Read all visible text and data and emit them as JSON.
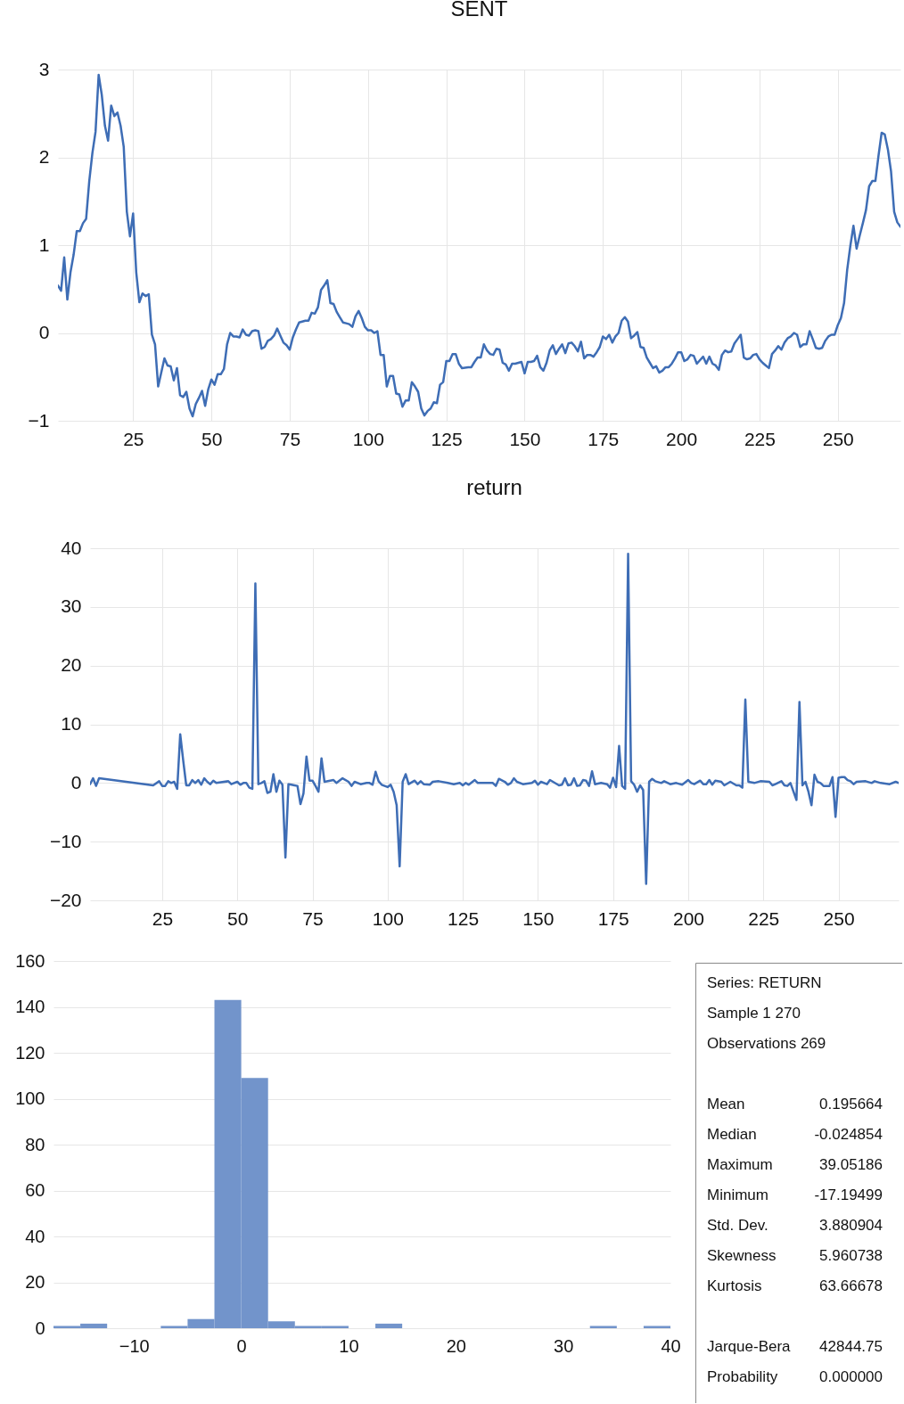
{
  "chart_data": [
    {
      "type": "line",
      "title": "SENT",
      "color": "#3e6db5",
      "grid": true,
      "xlim": [
        1,
        270
      ],
      "xticks": [
        25,
        50,
        75,
        100,
        125,
        150,
        175,
        200,
        225,
        250
      ],
      "ylim": [
        -1,
        3
      ],
      "yticks": [
        -1,
        0,
        1,
        2,
        3
      ],
      "x": [
        1,
        2,
        3,
        4,
        5,
        6,
        7,
        8,
        9,
        10,
        11,
        12,
        13,
        14,
        15,
        16,
        17,
        18,
        19,
        20,
        21,
        22,
        23,
        24,
        25,
        26,
        27,
        28,
        29,
        30,
        31,
        32,
        33,
        34,
        35,
        36,
        37,
        38,
        39,
        40,
        41,
        42,
        43,
        44,
        45,
        46,
        47,
        48,
        49,
        50,
        51,
        52,
        53,
        54,
        55,
        56,
        57,
        58,
        59,
        60,
        61,
        62,
        63,
        64,
        65,
        66,
        67,
        68,
        69,
        70,
        71,
        72,
        73,
        74,
        75,
        76,
        77,
        78,
        79,
        80,
        81,
        82,
        83,
        84,
        85,
        86,
        87,
        88,
        89,
        90,
        91,
        92,
        93,
        94,
        95,
        96,
        97,
        98,
        99,
        100,
        101,
        102,
        103,
        104,
        105,
        106,
        107,
        108,
        109,
        110,
        111,
        112,
        113,
        114,
        115,
        116,
        117,
        118,
        119,
        120,
        121,
        122,
        123,
        124,
        125,
        126,
        127,
        128,
        129,
        130,
        132,
        133,
        134,
        135,
        136,
        137,
        138,
        139,
        140,
        141,
        142,
        143,
        144,
        145,
        146,
        147,
        148,
        149,
        150,
        151,
        152,
        153,
        154,
        155,
        156,
        157,
        158,
        159,
        160,
        161,
        162,
        163,
        164,
        165,
        166,
        167,
        168,
        169,
        170,
        171,
        172,
        173,
        174,
        175,
        176,
        177,
        178,
        179,
        180,
        181,
        182,
        183,
        184,
        185,
        186,
        187,
        188,
        189,
        190,
        191,
        192,
        193,
        194,
        195,
        196,
        197,
        198,
        199,
        200,
        201,
        202,
        203,
        204,
        205,
        206,
        207,
        208,
        209,
        210,
        211,
        212,
        213,
        214,
        215,
        216,
        217,
        218,
        219,
        220,
        221,
        222,
        223,
        224,
        225,
        226,
        227,
        228,
        229,
        230,
        231,
        232,
        233,
        234,
        235,
        236,
        237,
        238,
        239,
        240,
        241,
        242,
        243,
        244,
        245,
        246,
        247,
        248,
        249,
        250,
        251,
        252,
        253,
        254,
        255,
        256,
        257,
        258,
        259,
        260,
        261,
        262,
        263,
        264,
        265,
        266,
        267,
        268,
        269,
        270
      ],
      "values": [
        0.54,
        0.48,
        0.86,
        0.38,
        0.69,
        0.89,
        1.16,
        1.16,
        1.25,
        1.3,
        1.73,
        2.05,
        2.29,
        2.94,
        2.71,
        2.36,
        2.19,
        2.59,
        2.47,
        2.51,
        2.36,
        2.12,
        1.38,
        1.1,
        1.36,
        0.69,
        0.35,
        0.45,
        0.42,
        0.44,
        -0.02,
        -0.13,
        -0.61,
        -0.45,
        -0.29,
        -0.37,
        -0.38,
        -0.54,
        -0.4,
        -0.71,
        -0.73,
        -0.67,
        -0.86,
        -0.95,
        -0.81,
        -0.74,
        -0.66,
        -0.83,
        -0.64,
        -0.53,
        -0.59,
        -0.47,
        -0.47,
        -0.41,
        -0.13,
        0.0,
        -0.04,
        -0.04,
        -0.05,
        0.04,
        -0.02,
        -0.03,
        0.02,
        0.03,
        0.02,
        -0.18,
        -0.16,
        -0.09,
        -0.07,
        -0.03,
        0.05,
        -0.03,
        -0.11,
        -0.14,
        -0.19,
        -0.05,
        0.04,
        0.12,
        0.13,
        0.14,
        0.14,
        0.23,
        0.22,
        0.29,
        0.49,
        0.54,
        0.6,
        0.34,
        0.33,
        0.24,
        0.18,
        0.12,
        0.11,
        0.1,
        0.07,
        0.19,
        0.25,
        0.17,
        0.07,
        0.03,
        0.03,
        0.0,
        0.02,
        -0.25,
        -0.25,
        -0.61,
        -0.49,
        -0.49,
        -0.69,
        -0.7,
        -0.84,
        -0.77,
        -0.77,
        -0.56,
        -0.61,
        -0.67,
        -0.86,
        -0.94,
        -0.89,
        -0.86,
        -0.79,
        -0.8,
        -0.59,
        -0.56,
        -0.32,
        -0.32,
        -0.24,
        -0.24,
        -0.35,
        -0.4,
        -0.39,
        -0.39,
        -0.33,
        -0.28,
        -0.28,
        -0.13,
        -0.2,
        -0.24,
        -0.25,
        -0.18,
        -0.19,
        -0.34,
        -0.36,
        -0.43,
        -0.35,
        -0.35,
        -0.34,
        -0.33,
        -0.46,
        -0.33,
        -0.33,
        -0.32,
        -0.26,
        -0.39,
        -0.43,
        -0.34,
        -0.2,
        -0.14,
        -0.24,
        -0.18,
        -0.13,
        -0.23,
        -0.12,
        -0.11,
        -0.15,
        -0.21,
        -0.1,
        -0.29,
        -0.25,
        -0.25,
        -0.27,
        -0.22,
        -0.16,
        -0.04,
        -0.07,
        -0.02,
        -0.11,
        -0.04,
        0.0,
        0.14,
        0.18,
        0.13,
        -0.06,
        -0.03,
        0.01,
        -0.16,
        -0.17,
        -0.28,
        -0.34,
        -0.4,
        -0.38,
        -0.45,
        -0.43,
        -0.39,
        -0.39,
        -0.35,
        -0.29,
        -0.22,
        -0.22,
        -0.32,
        -0.3,
        -0.25,
        -0.26,
        -0.35,
        -0.31,
        -0.27,
        -0.35,
        -0.27,
        -0.35,
        -0.37,
        -0.42,
        -0.25,
        -0.2,
        -0.22,
        -0.21,
        -0.12,
        -0.07,
        -0.02,
        -0.28,
        -0.3,
        -0.29,
        -0.25,
        -0.24,
        -0.3,
        -0.34,
        -0.37,
        -0.4,
        -0.24,
        -0.2,
        -0.15,
        -0.19,
        -0.11,
        -0.06,
        -0.04,
        0.0,
        -0.02,
        -0.16,
        -0.13,
        -0.13,
        0.02,
        -0.07,
        -0.17,
        -0.18,
        -0.17,
        -0.09,
        -0.04,
        -0.02,
        -0.02,
        0.09,
        0.17,
        0.34,
        0.72,
        0.99,
        1.22,
        0.96,
        1.11,
        1.25,
        1.4,
        1.67,
        1.73,
        1.73,
        2.02,
        2.28,
        2.26,
        2.09,
        1.84,
        1.38,
        1.26,
        1.21
      ]
    },
    {
      "type": "line",
      "title": "return",
      "color": "#3e6db5",
      "grid": true,
      "xlim": [
        1,
        270
      ],
      "xticks": [
        25,
        50,
        75,
        100,
        125,
        150,
        175,
        200,
        225,
        250
      ],
      "ylim": [
        -20,
        40
      ],
      "yticks": [
        -20,
        -10,
        0,
        10,
        20,
        30,
        40
      ],
      "x": [
        1,
        2,
        3,
        4,
        22,
        24,
        25,
        26,
        27,
        28,
        29,
        30,
        31,
        32,
        33,
        34,
        35,
        36,
        37,
        38,
        39,
        40,
        41,
        42,
        43,
        47,
        48,
        50,
        51,
        52,
        53,
        54,
        55,
        56,
        57,
        58,
        59,
        60,
        61,
        62,
        63,
        64,
        65,
        66,
        67,
        68,
        69,
        70,
        71,
        72,
        73,
        74,
        75,
        76,
        77,
        78,
        79,
        82,
        83,
        85,
        87,
        88,
        89,
        91,
        93,
        94,
        95,
        96,
        97,
        98,
        100,
        101,
        102,
        103,
        104,
        105,
        106,
        107,
        109,
        110,
        111,
        112,
        114,
        115,
        117,
        120,
        122,
        124,
        125,
        126,
        127,
        129,
        130,
        133,
        135,
        136,
        137,
        139,
        140,
        141,
        142,
        143,
        145,
        148,
        149,
        150,
        151,
        153,
        154,
        157,
        158,
        159,
        160,
        161,
        162,
        163,
        164,
        165,
        166,
        167,
        168,
        169,
        171,
        173,
        174,
        175,
        176,
        177,
        178,
        179,
        180,
        181,
        182,
        183,
        184,
        185,
        186,
        187,
        188,
        189,
        191,
        192,
        194,
        196,
        198,
        200,
        201,
        202,
        204,
        205,
        206,
        207,
        208,
        209,
        211,
        212,
        214,
        216,
        217,
        218,
        219,
        220,
        222,
        224,
        227,
        228,
        229,
        231,
        232,
        233,
        234,
        236,
        237,
        238,
        239,
        240,
        241,
        242,
        243,
        244,
        245,
        246,
        247,
        248,
        249,
        250,
        251,
        252,
        253,
        254,
        255,
        256,
        259,
        261,
        262,
        264,
        267,
        269,
        270
      ],
      "values": [
        -0.2,
        0.8,
        -0.5,
        0.8,
        -0.4,
        0.3,
        -0.5,
        -0.5,
        0.3,
        0,
        0.2,
        -1.0,
        8.3,
        3.8,
        -0.4,
        -0.4,
        0.5,
        0,
        0.5,
        -0.3,
        0.8,
        0.2,
        -0.2,
        0.4,
        0,
        0.3,
        -0.2,
        0.2,
        -0.3,
        0,
        0,
        -0.8,
        -1.0,
        34.0,
        -0.2,
        0,
        0.3,
        -1.7,
        -1.5,
        1.5,
        -1.5,
        0.4,
        -0.3,
        -12.7,
        -0.2,
        -0.3,
        -0.4,
        -0.5,
        -3.6,
        -1.8,
        4.5,
        0.4,
        0.4,
        -0.5,
        -1.5,
        4.2,
        0.2,
        0.5,
        0,
        0.8,
        0.2,
        -0.5,
        0.2,
        -0.2,
        0,
        0,
        -0.3,
        1.9,
        0.3,
        -0.3,
        -0.7,
        -0.3,
        -1.5,
        -3.8,
        -14.2,
        0.2,
        1.5,
        -0.2,
        0.4,
        -0.2,
        0.3,
        -0.2,
        -0.3,
        0.2,
        0.3,
        0,
        -0.2,
        0,
        -0.4,
        0,
        -0.3,
        0.5,
        0,
        0,
        0,
        -0.5,
        0.7,
        0.2,
        -0.3,
        0,
        0.8,
        0.2,
        -0.2,
        0,
        0.4,
        -0.3,
        0.2,
        -0.2,
        0.5,
        -0.4,
        -0.3,
        0.8,
        -0.4,
        -0.3,
        0.8,
        -0.5,
        -0.4,
        0.5,
        0.4,
        -0.5,
        2.0,
        -0.2,
        0,
        -0.2,
        -0.8,
        0.9,
        -0.7,
        6.3,
        -0.5,
        -1.0,
        39.05,
        0.3,
        -0.3,
        -1.5,
        -0.4,
        -1.2,
        -17.19,
        0.2,
        0.7,
        0.3,
        0,
        0.3,
        -0.2,
        0,
        -0.3,
        0.5,
        0,
        -0.2,
        0.4,
        -0.2,
        -0.2,
        0.5,
        -0.3,
        0.4,
        0.2,
        -0.4,
        0.2,
        -0.4,
        -0.4,
        -0.8,
        14.2,
        0.2,
        0,
        0.3,
        0.2,
        -0.4,
        -0.2,
        0.3,
        -0.4,
        -0.5,
        0,
        -2.9,
        13.8,
        -0.4,
        0.2,
        -1.5,
        -3.8,
        1.4,
        0.2,
        0,
        -0.5,
        -0.5,
        -0.5,
        1.0,
        -5.8,
        0.9,
        1.0,
        1.0,
        0.5,
        0.3,
        -0.2,
        0.2,
        0.3,
        0,
        0.3,
        0,
        -0.2,
        0.2,
        0
      ]
    },
    {
      "type": "histogram",
      "color": "#7294cb",
      "grid": "y",
      "xlim": [
        -17.5,
        40
      ],
      "xticks": [
        -10,
        0,
        10,
        20,
        30,
        40
      ],
      "ylim": [
        0,
        160
      ],
      "yticks": [
        0,
        20,
        40,
        60,
        80,
        100,
        120,
        140,
        160
      ],
      "bins": [
        -17.5,
        -15,
        -12.5,
        -10,
        -7.5,
        -5,
        -2.5,
        0,
        2.5,
        5,
        7.5,
        10,
        12.5,
        15,
        17.5,
        20,
        22.5,
        25,
        27.5,
        30,
        32.5,
        35,
        37.5,
        40
      ],
      "values": [
        1,
        2,
        0,
        0,
        1,
        4,
        143,
        109,
        3,
        1,
        1,
        0,
        2,
        0,
        0,
        0,
        0,
        0,
        0,
        0,
        1,
        0,
        1
      ]
    },
    {
      "type": "other",
      "annotations": [
        "Series: RETURN",
        "Sample 1 270",
        "Observations 269",
        "Mean",
        "0.195664",
        "Median",
        "-0.024854",
        "Maximum",
        "39.05186",
        "Minimum",
        "-17.19499",
        "Std. Dev.",
        "3.880904",
        "Skewness",
        "5.960738",
        "Kurtosis",
        "63.66678",
        "Jarque-Bera",
        "42844.75",
        "Probability",
        "0.000000"
      ]
    }
  ]
}
